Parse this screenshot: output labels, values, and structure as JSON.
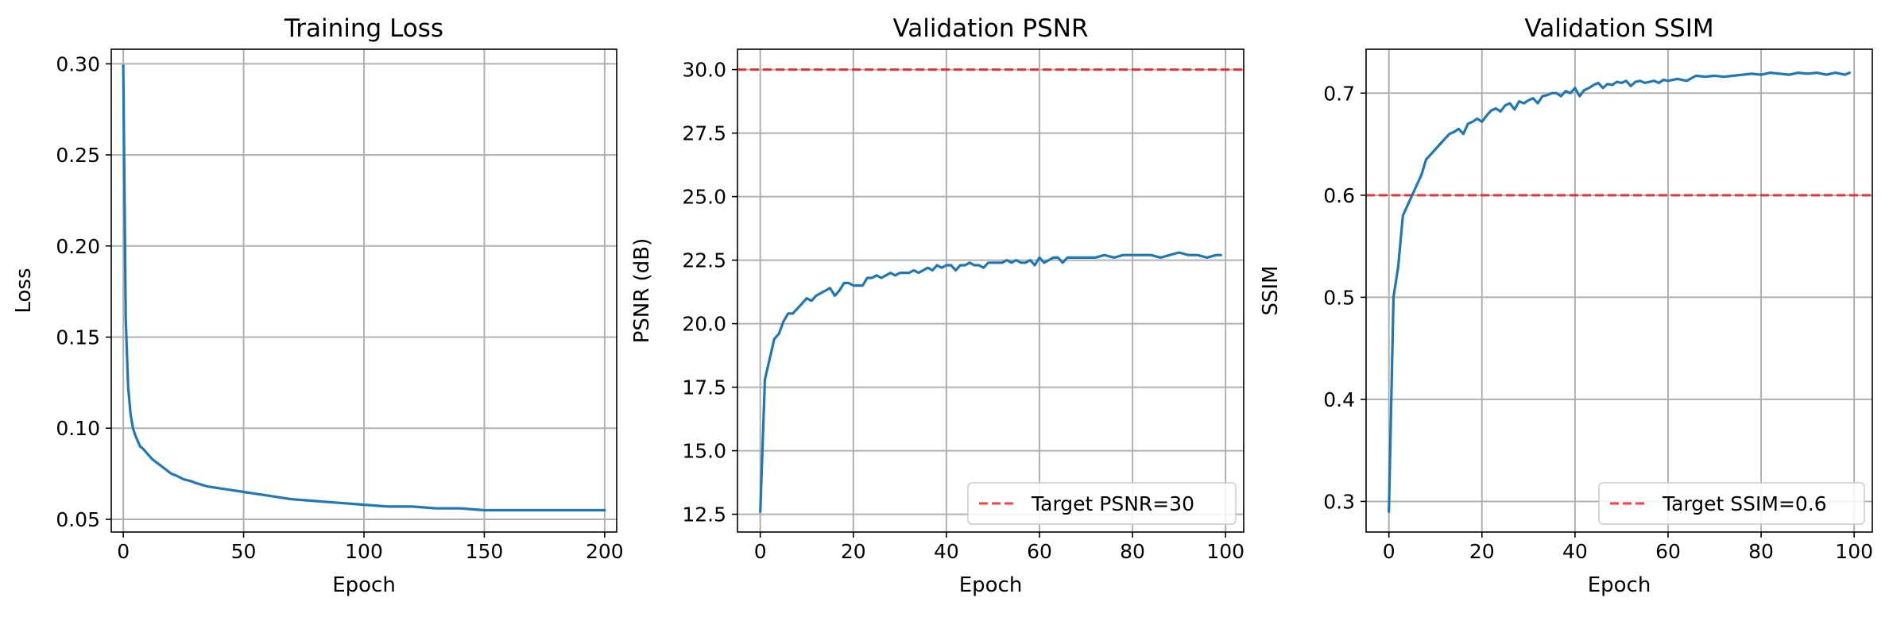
{
  "chart_data": [
    {
      "type": "line",
      "title": "Training Loss",
      "xlabel": "Epoch",
      "ylabel": "Loss",
      "xlim": [
        -5,
        205
      ],
      "ylim": [
        0.043,
        0.308
      ],
      "xticks": [
        0,
        50,
        100,
        150,
        200
      ],
      "yticks": [
        0.05,
        0.1,
        0.15,
        0.2,
        0.25,
        0.3
      ],
      "xtick_labels": [
        "0",
        "50",
        "100",
        "150",
        "200"
      ],
      "ytick_labels": [
        "0.05",
        "0.10",
        "0.15",
        "0.20",
        "0.25",
        "0.30"
      ],
      "grid": true,
      "legend": null,
      "color": "#1f77b4",
      "series": [
        {
          "x": [
            0,
            1,
            2,
            3,
            4,
            5,
            6,
            7,
            8,
            10,
            12,
            14,
            16,
            18,
            20,
            22,
            25,
            28,
            30,
            35,
            40,
            45,
            50,
            55,
            60,
            65,
            70,
            80,
            90,
            100,
            110,
            120,
            130,
            140,
            150,
            160,
            170,
            180,
            190,
            200
          ],
          "y": [
            0.299,
            0.16,
            0.123,
            0.108,
            0.1,
            0.096,
            0.093,
            0.09,
            0.089,
            0.086,
            0.083,
            0.081,
            0.079,
            0.077,
            0.075,
            0.074,
            0.072,
            0.071,
            0.07,
            0.068,
            0.067,
            0.066,
            0.065,
            0.064,
            0.063,
            0.062,
            0.061,
            0.06,
            0.059,
            0.058,
            0.057,
            0.057,
            0.056,
            0.056,
            0.055,
            0.055,
            0.055,
            0.055,
            0.055,
            0.055
          ]
        }
      ]
    },
    {
      "type": "line",
      "title": "Validation PSNR",
      "xlabel": "Epoch",
      "ylabel": "PSNR (dB)",
      "xlim": [
        -4.9,
        103.9
      ],
      "ylim": [
        11.8,
        30.8
      ],
      "xticks": [
        0,
        20,
        40,
        60,
        80,
        100
      ],
      "yticks": [
        12.5,
        15.0,
        17.5,
        20.0,
        22.5,
        25.0,
        27.5,
        30.0
      ],
      "xtick_labels": [
        "0",
        "20",
        "40",
        "60",
        "80",
        "100"
      ],
      "ytick_labels": [
        "12.5",
        "15.0",
        "17.5",
        "20.0",
        "22.5",
        "25.0",
        "27.5",
        "30.0"
      ],
      "grid": true,
      "legend": "lower right",
      "color": "#1f77b4",
      "series": [
        {
          "x": [
            0,
            1,
            2,
            3,
            4,
            5,
            6,
            7,
            8,
            9,
            10,
            11,
            12,
            13,
            14,
            15,
            16,
            17,
            18,
            19,
            20,
            21,
            22,
            23,
            24,
            25,
            26,
            27,
            28,
            29,
            30,
            31,
            32,
            33,
            34,
            35,
            36,
            37,
            38,
            39,
            40,
            41,
            42,
            43,
            44,
            45,
            46,
            47,
            48,
            49,
            50,
            51,
            52,
            53,
            54,
            55,
            56,
            57,
            58,
            59,
            60,
            61,
            62,
            63,
            64,
            65,
            66,
            67,
            68,
            69,
            70,
            72,
            74,
            76,
            78,
            80,
            82,
            84,
            86,
            88,
            90,
            92,
            94,
            96,
            98,
            99
          ],
          "y": [
            12.6,
            17.8,
            18.6,
            19.4,
            19.6,
            20.1,
            20.4,
            20.4,
            20.6,
            20.8,
            21.0,
            20.9,
            21.1,
            21.2,
            21.3,
            21.4,
            21.1,
            21.3,
            21.6,
            21.6,
            21.5,
            21.5,
            21.5,
            21.8,
            21.8,
            21.9,
            21.8,
            21.9,
            22.0,
            21.9,
            22.0,
            22.0,
            22.0,
            22.1,
            22.0,
            22.1,
            22.2,
            22.1,
            22.3,
            22.2,
            22.3,
            22.3,
            22.1,
            22.3,
            22.3,
            22.4,
            22.3,
            22.3,
            22.2,
            22.4,
            22.4,
            22.4,
            22.4,
            22.5,
            22.4,
            22.5,
            22.4,
            22.4,
            22.5,
            22.3,
            22.6,
            22.4,
            22.5,
            22.6,
            22.6,
            22.4,
            22.6,
            22.6,
            22.6,
            22.6,
            22.6,
            22.6,
            22.7,
            22.6,
            22.7,
            22.7,
            22.7,
            22.7,
            22.6,
            22.7,
            22.8,
            22.7,
            22.7,
            22.6,
            22.7,
            22.7
          ]
        }
      ],
      "reference_line": {
        "y": 30,
        "label": "Target PSNR=30",
        "color": "#ff0000"
      }
    },
    {
      "type": "line",
      "title": "Validation SSIM",
      "xlabel": "Epoch",
      "ylabel": "SSIM",
      "xlim": [
        -4.9,
        103.9
      ],
      "ylim": [
        0.27,
        0.743
      ],
      "xticks": [
        0,
        20,
        40,
        60,
        80,
        100
      ],
      "yticks": [
        0.3,
        0.4,
        0.5,
        0.6,
        0.7
      ],
      "xtick_labels": [
        "0",
        "20",
        "40",
        "60",
        "80",
        "100"
      ],
      "ytick_labels": [
        "0.3",
        "0.4",
        "0.5",
        "0.6",
        "0.7"
      ],
      "grid": true,
      "legend": "lower right",
      "color": "#1f77b4",
      "series": [
        {
          "x": [
            0,
            1,
            2,
            3,
            4,
            5,
            6,
            7,
            8,
            9,
            10,
            11,
            12,
            13,
            14,
            15,
            16,
            17,
            18,
            19,
            20,
            21,
            22,
            23,
            24,
            25,
            26,
            27,
            28,
            29,
            30,
            31,
            32,
            33,
            34,
            35,
            36,
            37,
            38,
            39,
            40,
            41,
            42,
            43,
            44,
            45,
            46,
            47,
            48,
            49,
            50,
            51,
            52,
            53,
            54,
            55,
            56,
            57,
            58,
            59,
            60,
            62,
            64,
            66,
            68,
            70,
            72,
            74,
            76,
            78,
            80,
            82,
            84,
            86,
            88,
            90,
            92,
            94,
            96,
            98,
            99
          ],
          "y": [
            0.29,
            0.5,
            0.53,
            0.58,
            0.59,
            0.6,
            0.61,
            0.62,
            0.635,
            0.64,
            0.645,
            0.65,
            0.655,
            0.66,
            0.662,
            0.665,
            0.66,
            0.67,
            0.672,
            0.675,
            0.672,
            0.678,
            0.683,
            0.685,
            0.682,
            0.688,
            0.69,
            0.684,
            0.692,
            0.69,
            0.693,
            0.695,
            0.69,
            0.697,
            0.698,
            0.7,
            0.7,
            0.697,
            0.702,
            0.7,
            0.705,
            0.697,
            0.703,
            0.705,
            0.708,
            0.71,
            0.705,
            0.709,
            0.708,
            0.711,
            0.71,
            0.712,
            0.707,
            0.711,
            0.712,
            0.71,
            0.711,
            0.712,
            0.71,
            0.713,
            0.712,
            0.714,
            0.712,
            0.717,
            0.716,
            0.717,
            0.716,
            0.717,
            0.718,
            0.719,
            0.718,
            0.72,
            0.719,
            0.718,
            0.72,
            0.719,
            0.72,
            0.718,
            0.72,
            0.718,
            0.72
          ]
        }
      ],
      "reference_line": {
        "y": 0.6,
        "label": "Target SSIM=0.6",
        "color": "#ff0000"
      }
    }
  ]
}
